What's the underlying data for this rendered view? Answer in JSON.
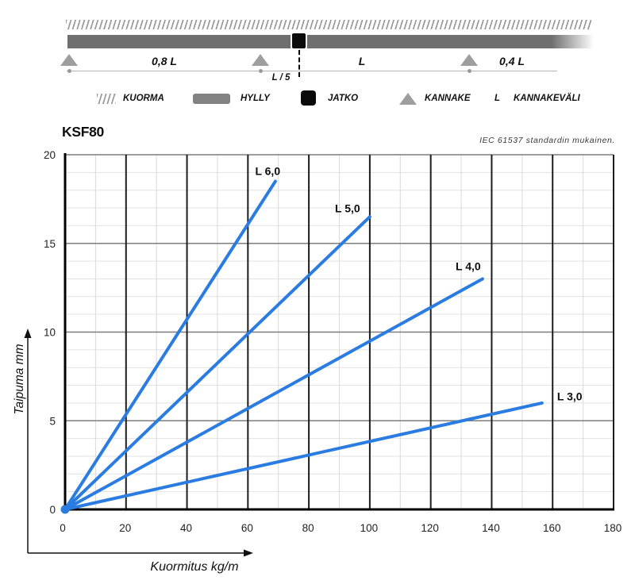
{
  "diagram": {
    "span_labels": [
      "0,8 L",
      "L",
      "0,4 L"
    ],
    "joint_label": "L / 5",
    "legend": [
      {
        "icon": "kuorma-hatch-icon",
        "label": "KUORMA"
      },
      {
        "icon": "hylly-bar-icon",
        "label": "HYLLY"
      },
      {
        "icon": "jatko-square-icon",
        "label": "JATKO"
      },
      {
        "icon": "kannake-triangle-icon",
        "label": "KANNAKE"
      },
      {
        "icon": "letter-l",
        "icon_text": "L",
        "label": "KANNAKEVÄLI"
      }
    ],
    "colors": {
      "bar": "#6f6f6f",
      "hatch": "#9a9a9a",
      "support": "#9e9e9e",
      "joint": "#0a0a0a"
    }
  },
  "chart_data": {
    "type": "line",
    "title": "KSF80",
    "note": "IEC 61537 standardin mukainen.",
    "xlabel": "Kuormitus kg/m",
    "ylabel": "Taipuma mm",
    "xlim": [
      0,
      180
    ],
    "ylim": [
      0,
      20
    ],
    "x_ticks": [
      0,
      20,
      40,
      60,
      80,
      100,
      120,
      140,
      160,
      180
    ],
    "y_ticks": [
      0,
      5,
      10,
      15,
      20
    ],
    "x_minor_step": 10,
    "y_minor_step": 1,
    "grid": true,
    "legend_position": "on-line-labels",
    "line_color": "#2b7ce1",
    "series": [
      {
        "name": "L 6,0",
        "points": [
          [
            0,
            0
          ],
          [
            69,
            18.5
          ]
        ],
        "label_at": [
          66.5,
          18.85
        ]
      },
      {
        "name": "L 5,0",
        "points": [
          [
            0,
            0
          ],
          [
            100,
            16.5
          ]
        ],
        "label_at": [
          92.7,
          16.75
        ]
      },
      {
        "name": "L 4,0",
        "points": [
          [
            0,
            0
          ],
          [
            137,
            13.0
          ]
        ],
        "label_at": [
          132.3,
          13.5
        ]
      },
      {
        "name": "L 3,0",
        "points": [
          [
            0,
            0
          ],
          [
            156.5,
            6.0
          ]
        ],
        "label_at": [
          165.6,
          6.15
        ]
      }
    ]
  }
}
